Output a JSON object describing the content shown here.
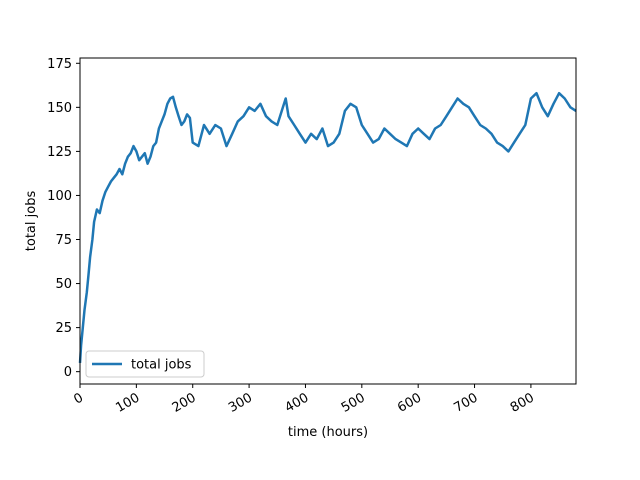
{
  "chart_data": {
    "type": "line",
    "xlabel": "time (hours)",
    "ylabel": "total jobs",
    "xlim": [
      0,
      880
    ],
    "ylim": [
      -7,
      178
    ],
    "x_ticks": [
      0,
      100,
      200,
      300,
      400,
      500,
      600,
      700,
      800
    ],
    "y_ticks": [
      0,
      25,
      50,
      75,
      100,
      125,
      150,
      175
    ],
    "x_tick_rotation_deg": 30,
    "grid": false,
    "legend_position": "lower-left",
    "series": [
      {
        "name": "total jobs",
        "color": "#1f77b4",
        "x": [
          0,
          2,
          5,
          8,
          12,
          15,
          18,
          22,
          25,
          30,
          35,
          40,
          45,
          50,
          55,
          60,
          65,
          70,
          75,
          80,
          85,
          90,
          95,
          100,
          105,
          110,
          115,
          120,
          125,
          130,
          135,
          140,
          145,
          150,
          155,
          160,
          165,
          170,
          175,
          180,
          185,
          190,
          195,
          200,
          210,
          220,
          230,
          240,
          250,
          260,
          270,
          280,
          290,
          300,
          310,
          320,
          330,
          340,
          350,
          360,
          365,
          370,
          380,
          390,
          400,
          410,
          420,
          430,
          440,
          450,
          460,
          470,
          480,
          490,
          500,
          510,
          520,
          530,
          540,
          550,
          560,
          570,
          580,
          590,
          600,
          610,
          620,
          630,
          640,
          650,
          660,
          670,
          680,
          690,
          700,
          710,
          720,
          730,
          740,
          750,
          760,
          770,
          780,
          790,
          800,
          810,
          820,
          830,
          840,
          850,
          860,
          870,
          880
        ],
        "y": [
          5,
          15,
          25,
          35,
          45,
          55,
          65,
          75,
          85,
          92,
          90,
          97,
          102,
          105,
          108,
          110,
          112,
          115,
          112,
          118,
          122,
          124,
          128,
          125,
          120,
          122,
          124,
          118,
          122,
          128,
          130,
          138,
          142,
          146,
          152,
          155,
          156,
          150,
          145,
          140,
          142,
          146,
          144,
          130,
          128,
          140,
          135,
          140,
          138,
          128,
          135,
          142,
          145,
          150,
          148,
          152,
          145,
          142,
          140,
          150,
          155,
          145,
          140,
          135,
          130,
          135,
          132,
          138,
          128,
          130,
          135,
          148,
          152,
          150,
          140,
          135,
          130,
          132,
          138,
          135,
          132,
          130,
          128,
          135,
          138,
          135,
          132,
          138,
          140,
          145,
          150,
          155,
          152,
          150,
          145,
          140,
          138,
          135,
          130,
          128,
          125,
          130,
          135,
          140,
          155,
          158,
          150,
          145,
          152,
          158,
          155,
          150,
          148
        ]
      }
    ]
  }
}
